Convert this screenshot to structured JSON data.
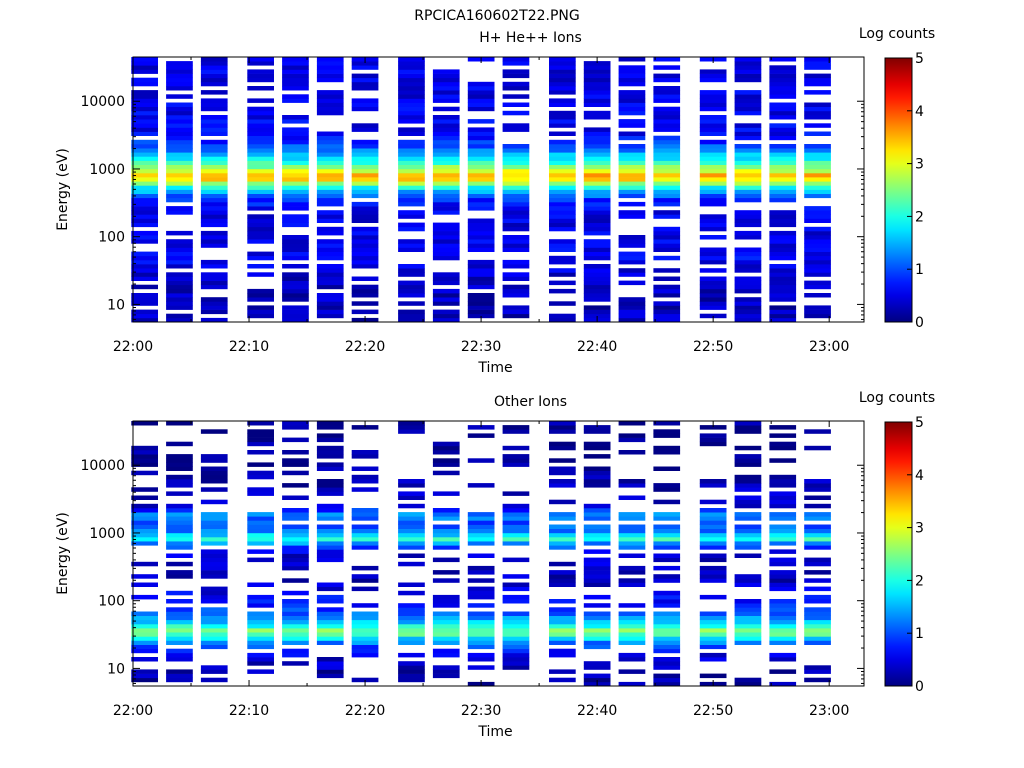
{
  "figure": {
    "title": "RPCICA160602T22.PNG"
  },
  "colors": {
    "colormap": "jet",
    "background": "#ffffff",
    "axes": "#000000"
  },
  "chart_data": [
    {
      "type": "heatmap",
      "title": "H+ He++ Ions",
      "xlabel": "Time",
      "ylabel": "Energy (eV)",
      "y_scale": "log",
      "x_ticks": [
        "22:00",
        "22:10",
        "22:20",
        "22:30",
        "22:40",
        "22:50",
        "23:00"
      ],
      "y_ticks": [
        "10",
        "100",
        "1000",
        "10000"
      ],
      "xlim": [
        "22:00",
        "23:03"
      ],
      "ylim": [
        5.5,
        45000
      ],
      "colorbar": {
        "label": "Log counts",
        "range": [
          0,
          5
        ],
        "ticks": [
          "0",
          "1",
          "2",
          "3",
          "4",
          "5"
        ]
      },
      "columns": [
        "22:01",
        "22:04",
        "22:07",
        "22:11",
        "22:14",
        "22:17",
        "22:20",
        "22:24",
        "22:27",
        "22:30",
        "22:33",
        "22:37",
        "22:40",
        "22:43",
        "22:46",
        "22:50",
        "22:53",
        "22:56",
        "22:59"
      ],
      "energy_profile": [
        {
          "energy": 8,
          "log_counts": 0.3
        },
        {
          "energy": 20,
          "log_counts": 0.3
        },
        {
          "energy": 50,
          "log_counts": 0.6
        },
        {
          "energy": 100,
          "log_counts": 0.5
        },
        {
          "energy": 200,
          "log_counts": 0.5
        },
        {
          "energy": 350,
          "log_counts": 0.8
        },
        {
          "energy": 500,
          "log_counts": 1.6
        },
        {
          "energy": 650,
          "log_counts": 3.0
        },
        {
          "energy": 780,
          "log_counts": 3.6
        },
        {
          "energy": 950,
          "log_counts": 2.9
        },
        {
          "energy": 1300,
          "log_counts": 2.0
        },
        {
          "energy": 1800,
          "log_counts": 1.3
        },
        {
          "energy": 3000,
          "log_counts": 0.6
        },
        {
          "energy": 10000,
          "log_counts": 0.5
        },
        {
          "energy": 40000,
          "log_counts": 0.5
        }
      ]
    },
    {
      "type": "heatmap",
      "title": "Other Ions",
      "xlabel": "Time",
      "ylabel": "Energy (eV)",
      "y_scale": "log",
      "x_ticks": [
        "22:00",
        "22:10",
        "22:20",
        "22:30",
        "22:40",
        "22:50",
        "23:00"
      ],
      "y_ticks": [
        "10",
        "100",
        "1000",
        "10000"
      ],
      "xlim": [
        "22:00",
        "23:03"
      ],
      "ylim": [
        5.5,
        45000
      ],
      "colorbar": {
        "label": "Log counts",
        "range": [
          0,
          5
        ],
        "ticks": [
          "0",
          "1",
          "2",
          "3",
          "4",
          "5"
        ]
      },
      "columns": [
        "22:01",
        "22:04",
        "22:07",
        "22:11",
        "22:14",
        "22:17",
        "22:20",
        "22:24",
        "22:27",
        "22:30",
        "22:33",
        "22:37",
        "22:40",
        "22:43",
        "22:46",
        "22:50",
        "22:53",
        "22:56",
        "22:59"
      ],
      "energy_profile": [
        {
          "energy": 8,
          "log_counts": 0.2
        },
        {
          "energy": 15,
          "log_counts": 0.4
        },
        {
          "energy": 25,
          "log_counts": 1.3
        },
        {
          "energy": 35,
          "log_counts": 2.6
        },
        {
          "energy": 50,
          "log_counts": 1.5
        },
        {
          "energy": 80,
          "log_counts": 0.8
        },
        {
          "energy": 200,
          "log_counts": 0.3
        },
        {
          "energy": 500,
          "log_counts": 0.4
        },
        {
          "energy": 700,
          "log_counts": 1.3
        },
        {
          "energy": 850,
          "log_counts": 2.3
        },
        {
          "energy": 1000,
          "log_counts": 1.3
        },
        {
          "energy": 1500,
          "log_counts": 0.9
        },
        {
          "energy": 1800,
          "log_counts": 1.4
        },
        {
          "energy": 2500,
          "log_counts": 0.4
        },
        {
          "energy": 10000,
          "log_counts": 0.1
        },
        {
          "energy": 40000,
          "log_counts": 0.1
        }
      ]
    }
  ]
}
